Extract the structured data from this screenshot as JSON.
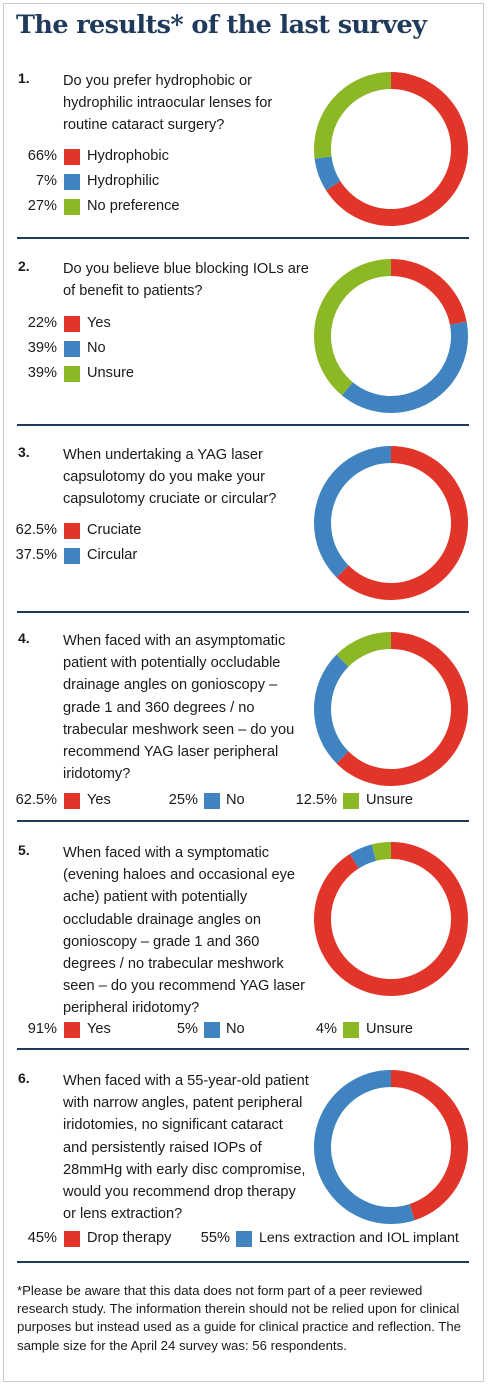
{
  "title": "The results* of the last survey",
  "colors": {
    "red": "#e2352a",
    "blue": "#3f83c1",
    "green": "#8db825",
    "navy": "#1f3a5a"
  },
  "footnote": "*Please be aware that this data does not form part of a peer reviewed research study. The information therein should not be relied upon for clinical purposes but instead used as a guide for clinical practice and reflection. The sample size for the April 24 survey was: 56 respondents.",
  "questions": [
    {
      "number": "1.",
      "text": "Do you prefer hydrophobic or hydrophilic intraocular lenses for routine cataract surgery?",
      "legend": [
        {
          "pct": "66%",
          "label": "Hydrophobic"
        },
        {
          "pct": "7%",
          "label": "Hydrophilic"
        },
        {
          "pct": "27%",
          "label": "No preference"
        }
      ]
    },
    {
      "number": "2.",
      "text": "Do you believe blue blocking IOLs are of benefit to patients?",
      "legend": [
        {
          "pct": "22%",
          "label": "Yes"
        },
        {
          "pct": "39%",
          "label": "No"
        },
        {
          "pct": "39%",
          "label": "Unsure"
        }
      ]
    },
    {
      "number": "3.",
      "text": "When undertaking a YAG laser capsulotomy do you make your capsulotomy cruciate or circular?",
      "legend": [
        {
          "pct": "62.5%",
          "label": "Cruciate"
        },
        {
          "pct": "37.5%",
          "label": "Circular"
        }
      ]
    },
    {
      "number": "4.",
      "text": "When faced with an asymptomatic patient with potentially occludable drainage angles on gonioscopy – grade 1 and 360 degrees / no trabecular meshwork seen – do you recommend YAG laser peripheral iridotomy?",
      "legend": [
        {
          "pct": "62.5%",
          "label": "Yes"
        },
        {
          "pct": "25%",
          "label": "No"
        },
        {
          "pct": "12.5%",
          "label": "Unsure"
        }
      ]
    },
    {
      "number": "5.",
      "text": "When faced with a symptomatic (evening haloes and occasional eye ache) patient with potentially occludable drainage angles on gonioscopy – grade 1 and 360 degrees / no trabecular meshwork seen – do you recommend YAG laser peripheral iridotomy?",
      "legend": [
        {
          "pct": "91%",
          "label": "Yes"
        },
        {
          "pct": "5%",
          "label": "No"
        },
        {
          "pct": "4%",
          "label": "Unsure"
        }
      ]
    },
    {
      "number": "6.",
      "text": "When faced with a 55-year-old patient with narrow angles, patent peripheral iridotomies, no significant cataract and persistently raised IOPs of 28mmHg with early disc compromise, would you recommend drop therapy or lens extraction?",
      "legend": [
        {
          "pct": "45%",
          "label": "Drop therapy"
        },
        {
          "pct": "55%",
          "label": "Lens extraction and IOL implant"
        }
      ]
    }
  ],
  "chart_data": [
    {
      "type": "pie",
      "categories": [
        "Hydrophobic",
        "Hydrophilic",
        "No preference"
      ],
      "values": [
        66,
        7,
        27
      ],
      "colors": [
        "#e2352a",
        "#3f83c1",
        "#8db825"
      ]
    },
    {
      "type": "pie",
      "categories": [
        "Yes",
        "No",
        "Unsure"
      ],
      "values": [
        22,
        39,
        39
      ],
      "colors": [
        "#e2352a",
        "#3f83c1",
        "#8db825"
      ]
    },
    {
      "type": "pie",
      "categories": [
        "Cruciate",
        "Circular"
      ],
      "values": [
        62.5,
        37.5
      ],
      "colors": [
        "#e2352a",
        "#3f83c1"
      ]
    },
    {
      "type": "pie",
      "categories": [
        "Yes",
        "No",
        "Unsure"
      ],
      "values": [
        62.5,
        25,
        12.5
      ],
      "colors": [
        "#e2352a",
        "#3f83c1",
        "#8db825"
      ]
    },
    {
      "type": "pie",
      "categories": [
        "Yes",
        "No",
        "Unsure"
      ],
      "values": [
        91,
        5,
        4
      ],
      "colors": [
        "#e2352a",
        "#3f83c1",
        "#8db825"
      ]
    },
    {
      "type": "pie",
      "categories": [
        "Drop therapy",
        "Lens extraction and IOL implant"
      ],
      "values": [
        45,
        55
      ],
      "colors": [
        "#e2352a",
        "#3f83c1"
      ]
    }
  ]
}
